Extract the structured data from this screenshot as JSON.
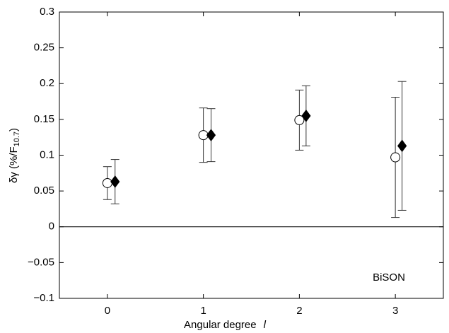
{
  "chart_data": {
    "type": "scatter",
    "xlabel": "Angular degree",
    "xlabel_symbol": "l",
    "ylabel": {
      "main": "δγ (%/F",
      "sub": "10.7",
      "end": ")"
    },
    "annotation": "BiSON",
    "xlim": [
      -0.5,
      3.5
    ],
    "ylim": [
      -0.1,
      0.3
    ],
    "xticks": [
      0,
      1,
      2,
      3
    ],
    "yticks": [
      {
        "value": -0.1,
        "label": "−0.1"
      },
      {
        "value": -0.05,
        "label": "−0.05"
      },
      0,
      0.05,
      0.1,
      0.15,
      0.2,
      0.25,
      0.3
    ],
    "zero_line": true,
    "series": [
      {
        "marker": "circle",
        "color": "#000000",
        "filled": false,
        "x": [
          0,
          1,
          2,
          3
        ],
        "values": [
          0.061,
          0.128,
          0.149,
          0.097
        ],
        "errors": [
          0.023,
          0.038,
          0.042,
          0.084
        ]
      },
      {
        "marker": "diamond",
        "color": "#000000",
        "filled": true,
        "x": [
          0.08,
          1.08,
          2.07,
          3.07
        ],
        "values": [
          0.063,
          0.128,
          0.155,
          0.113
        ],
        "errors": [
          0.031,
          0.037,
          0.042,
          0.09
        ]
      }
    ]
  }
}
